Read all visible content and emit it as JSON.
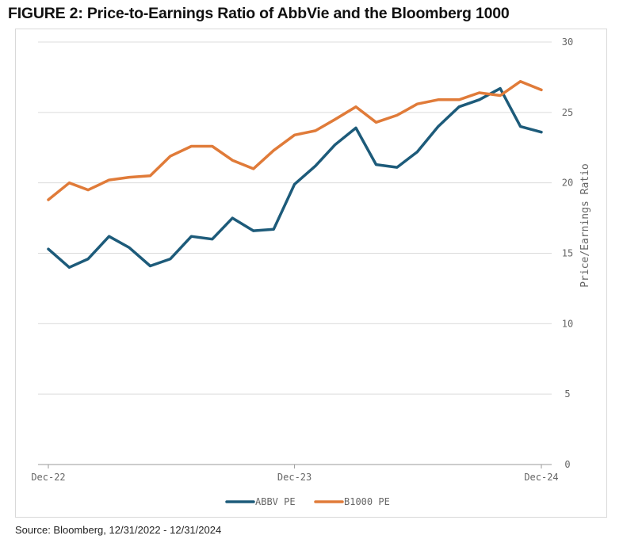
{
  "figure": {
    "title": "FIGURE 2: Price-to-Earnings Ratio of AbbVie and the Bloomberg 1000",
    "source": "Source: Bloomberg, 12/31/2022 - 12/31/2024"
  },
  "colors": {
    "abbv": "#1d5b7a",
    "b1000": "#e07b39",
    "grid": "#dcdcdc",
    "axis_text": "#666666"
  },
  "chart_data": {
    "type": "line",
    "title": "Price-to-Earnings Ratio of AbbVie and the Bloomberg 1000",
    "xlabel": "",
    "ylabel": "Price/Earnings Ratio",
    "y_axis_side": "right",
    "ylim": [
      0,
      30
    ],
    "yticks": [
      0,
      5,
      10,
      15,
      20,
      25,
      30
    ],
    "xlim": [
      "2022-12-31",
      "2024-12-31"
    ],
    "xticks": [
      {
        "label": "Dec-22",
        "date": "2022-12-31"
      },
      {
        "label": "Dec-23",
        "date": "2023-12-31"
      },
      {
        "label": "Dec-24",
        "date": "2024-12-31"
      }
    ],
    "grid": "horizontal",
    "legend": "bottom-center",
    "series": [
      {
        "name": "ABBV PE",
        "color": "#1d5b7a",
        "points": [
          [
            "2022-12-31",
            15.3
          ],
          [
            "2023-01-31",
            14.0
          ],
          [
            "2023-02-28",
            14.6
          ],
          [
            "2023-03-31",
            16.2
          ],
          [
            "2023-04-30",
            15.4
          ],
          [
            "2023-05-31",
            14.1
          ],
          [
            "2023-06-30",
            14.6
          ],
          [
            "2023-07-31",
            16.2
          ],
          [
            "2023-08-31",
            16.0
          ],
          [
            "2023-09-30",
            17.5
          ],
          [
            "2023-10-31",
            16.6
          ],
          [
            "2023-11-30",
            16.7
          ],
          [
            "2023-12-31",
            19.9
          ],
          [
            "2024-01-31",
            21.2
          ],
          [
            "2024-02-29",
            22.7
          ],
          [
            "2024-03-31",
            23.9
          ],
          [
            "2024-04-30",
            21.3
          ],
          [
            "2024-05-31",
            21.1
          ],
          [
            "2024-06-30",
            22.2
          ],
          [
            "2024-07-31",
            24.0
          ],
          [
            "2024-08-31",
            25.4
          ],
          [
            "2024-09-30",
            25.9
          ],
          [
            "2024-10-31",
            26.7
          ],
          [
            "2024-11-30",
            24.0
          ],
          [
            "2024-12-31",
            23.6
          ]
        ]
      },
      {
        "name": "B1000 PE",
        "color": "#e07b39",
        "points": [
          [
            "2022-12-31",
            18.8
          ],
          [
            "2023-01-31",
            20.0
          ],
          [
            "2023-02-28",
            19.5
          ],
          [
            "2023-03-31",
            20.2
          ],
          [
            "2023-04-30",
            20.4
          ],
          [
            "2023-05-31",
            20.5
          ],
          [
            "2023-06-30",
            21.9
          ],
          [
            "2023-07-31",
            22.6
          ],
          [
            "2023-08-31",
            22.6
          ],
          [
            "2023-09-30",
            21.6
          ],
          [
            "2023-10-31",
            21.0
          ],
          [
            "2023-11-30",
            22.3
          ],
          [
            "2023-12-31",
            23.4
          ],
          [
            "2024-01-31",
            23.7
          ],
          [
            "2024-02-29",
            24.5
          ],
          [
            "2024-03-31",
            25.4
          ],
          [
            "2024-04-30",
            24.3
          ],
          [
            "2024-05-31",
            24.8
          ],
          [
            "2024-06-30",
            25.6
          ],
          [
            "2024-07-31",
            25.9
          ],
          [
            "2024-08-31",
            25.9
          ],
          [
            "2024-09-30",
            26.4
          ],
          [
            "2024-10-31",
            26.2
          ],
          [
            "2024-11-30",
            27.2
          ],
          [
            "2024-12-31",
            26.6
          ]
        ]
      }
    ]
  }
}
